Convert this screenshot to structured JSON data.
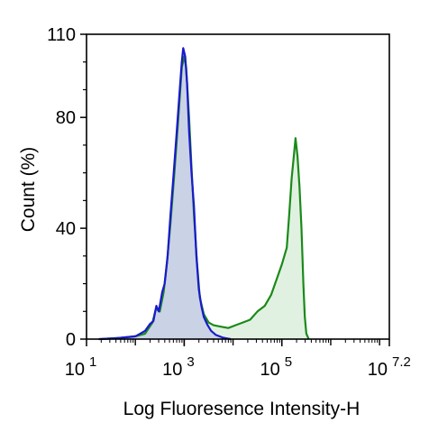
{
  "chart_data": {
    "type": "area",
    "xlabel": "Log Fluoresence Intensity-H",
    "ylabel": "Count  (%)",
    "x_scale": "log10",
    "xlim_log10": [
      1,
      7.2
    ],
    "ylim": [
      0,
      110
    ],
    "y_ticks": [
      {
        "value": 0,
        "label": "0"
      },
      {
        "value": 40,
        "label": "40"
      },
      {
        "value": 80,
        "label": "80"
      },
      {
        "value": 110,
        "label": "110"
      }
    ],
    "x_ticks": [
      {
        "exp": 1,
        "base": "10",
        "sup": "1"
      },
      {
        "exp": 3,
        "base": "10",
        "sup": "3"
      },
      {
        "exp": 5,
        "base": "10",
        "sup": "5"
      },
      {
        "exp": 7.2,
        "base": "10",
        "sup": "7.2"
      }
    ],
    "series": [
      {
        "line_color": "#1a1acc",
        "fill_color": "#c5cde6",
        "points": [
          [
            1.25,
            0
          ],
          [
            1.6,
            0.3
          ],
          [
            1.9,
            0.8
          ],
          [
            2.0,
            1
          ],
          [
            2.1,
            2
          ],
          [
            2.2,
            3
          ],
          [
            2.3,
            5.5
          ],
          [
            2.37,
            6.5
          ],
          [
            2.43,
            12
          ],
          [
            2.48,
            10
          ],
          [
            2.55,
            17
          ],
          [
            2.6,
            20
          ],
          [
            2.66,
            30
          ],
          [
            2.72,
            45
          ],
          [
            2.78,
            59
          ],
          [
            2.84,
            73
          ],
          [
            2.9,
            88
          ],
          [
            2.95,
            100
          ],
          [
            2.98,
            105
          ],
          [
            3.02,
            102
          ],
          [
            3.06,
            92
          ],
          [
            3.1,
            75
          ],
          [
            3.15,
            60
          ],
          [
            3.2,
            48
          ],
          [
            3.25,
            30
          ],
          [
            3.3,
            18
          ],
          [
            3.35,
            12
          ],
          [
            3.4,
            8
          ],
          [
            3.48,
            5
          ],
          [
            3.55,
            3
          ],
          [
            3.65,
            1.5
          ],
          [
            3.8,
            0.5
          ],
          [
            3.95,
            0
          ]
        ]
      },
      {
        "line_color": "#1a8a1a",
        "fill_color": "#dcefdc",
        "points": [
          [
            1.3,
            0
          ],
          [
            1.7,
            0.5
          ],
          [
            2.0,
            1
          ],
          [
            2.2,
            2
          ],
          [
            2.35,
            6
          ],
          [
            2.42,
            11
          ],
          [
            2.5,
            10
          ],
          [
            2.58,
            17
          ],
          [
            2.65,
            28
          ],
          [
            2.72,
            42
          ],
          [
            2.8,
            60
          ],
          [
            2.88,
            80
          ],
          [
            2.95,
            98
          ],
          [
            3.0,
            102
          ],
          [
            3.04,
            98
          ],
          [
            3.1,
            80
          ],
          [
            3.15,
            62
          ],
          [
            3.2,
            45
          ],
          [
            3.26,
            28
          ],
          [
            3.32,
            15
          ],
          [
            3.4,
            9
          ],
          [
            3.5,
            6
          ],
          [
            3.6,
            5
          ],
          [
            3.75,
            4.5
          ],
          [
            3.9,
            4
          ],
          [
            4.05,
            5
          ],
          [
            4.2,
            6
          ],
          [
            4.35,
            7
          ],
          [
            4.5,
            10
          ],
          [
            4.65,
            12
          ],
          [
            4.78,
            16
          ],
          [
            4.9,
            22
          ],
          [
            5.0,
            27
          ],
          [
            5.1,
            33
          ],
          [
            5.15,
            45
          ],
          [
            5.2,
            58
          ],
          [
            5.25,
            67
          ],
          [
            5.28,
            72.5
          ],
          [
            5.32,
            66
          ],
          [
            5.36,
            55
          ],
          [
            5.4,
            40
          ],
          [
            5.44,
            20
          ],
          [
            5.47,
            8
          ],
          [
            5.5,
            2
          ],
          [
            5.55,
            0
          ]
        ]
      }
    ]
  }
}
